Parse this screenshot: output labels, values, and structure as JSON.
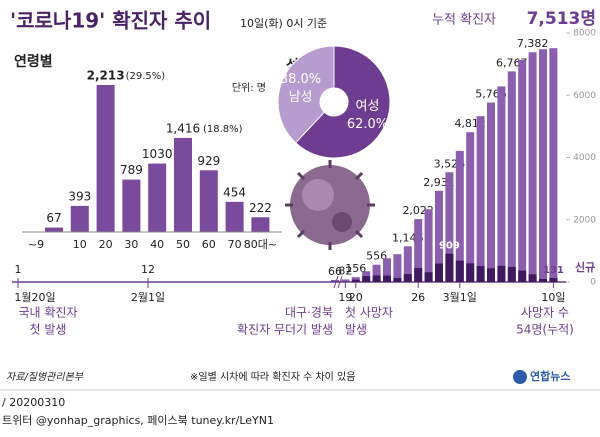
{
  "header": {
    "title": "'코로나19' 확진자 추이",
    "subtitle": "10일(화) 0시 기준"
  },
  "chart_data": [
    {
      "type": "bar",
      "title": "연령별",
      "unit_note": "단위: 명",
      "categories": [
        "~9",
        "10",
        "20",
        "30",
        "40",
        "50",
        "60",
        "70",
        "80대~"
      ],
      "values": [
        67,
        393,
        2213,
        789,
        1030,
        1416,
        929,
        454,
        222
      ],
      "value_labels": [
        "67",
        "393",
        "2,213",
        "789",
        "1030",
        "1,416",
        "929",
        "454",
        "222"
      ],
      "annotations": [
        {
          "category": "20",
          "text": "(29.5%)"
        },
        {
          "category": "50",
          "text": "(18.8%)"
        }
      ],
      "color": "#7a4a9c"
    },
    {
      "type": "pie",
      "title": "성별",
      "categories": [
        "남성",
        "여성"
      ],
      "values": [
        38.0,
        62.0
      ],
      "value_labels": [
        "38.0%",
        "62.0%"
      ],
      "colors": [
        "#b79ccf",
        "#6e3d92"
      ]
    },
    {
      "type": "bar",
      "total_label": "7,513명",
      "categories": [
        null,
        "19",
        "20",
        null,
        null,
        null,
        null,
        null,
        "26",
        null,
        null,
        null,
        "3월1일",
        null,
        null,
        null,
        null,
        null,
        null,
        null,
        null,
        "10일"
      ],
      "series": [
        {
          "name": "누적 확진자",
          "color": "#8b5fae",
          "values": [
            66,
            82,
            156,
            346,
            556,
            763,
            893,
            1146,
            2022,
            2337,
            2931,
            3526,
            4212,
            4812,
            5328,
            5766,
            6284,
            6767,
            7134,
            7382,
            7478,
            7513
          ],
          "value_labels": [
            "66",
            "82",
            "156",
            null,
            "556",
            null,
            null,
            "1,146",
            "2,022",
            null,
            "2,931",
            "3,526",
            null,
            "4,812",
            null,
            "5,766",
            null,
            "6,767",
            null,
            "7,382",
            null,
            null
          ]
        },
        {
          "name": "신규",
          "color": "#3f1a5e",
          "values": [
            15,
            16,
            74,
            190,
            210,
            207,
            130,
            253,
            449,
            315,
            594,
            909,
            686,
            600,
            516,
            438,
            518,
            483,
            367,
            248,
            96,
            131
          ],
          "value_labels": [
            null,
            null,
            null,
            null,
            null,
            null,
            null,
            null,
            null,
            null,
            null,
            "909",
            null,
            null,
            null,
            null,
            null,
            null,
            null,
            null,
            null,
            "131"
          ]
        }
      ],
      "early": {
        "categories": [
          "1월20일",
          "2월1일"
        ],
        "values": [
          1,
          12
        ]
      },
      "ylim": [
        0,
        8000
      ],
      "yticks": [
        0,
        2000,
        4000,
        6000,
        8000
      ],
      "notes": [
        [
          "국내 확진자",
          "첫 발생"
        ],
        [
          "대구·경북",
          "확진자 무더기 발생"
        ],
        [
          "첫 사망자",
          "발생"
        ],
        [
          "사망자 수",
          "54명(누적)"
        ]
      ]
    }
  ],
  "footer": {
    "source": "자료/질병관리본부",
    "note": "※일별 시차에 따라 확진자 수 차이 있음",
    "logo": "연합뉴스",
    "date": " / 20200310",
    "credit": "트위터 @yonhap_graphics, 페이스북 tuney.kr/LeYN1"
  }
}
